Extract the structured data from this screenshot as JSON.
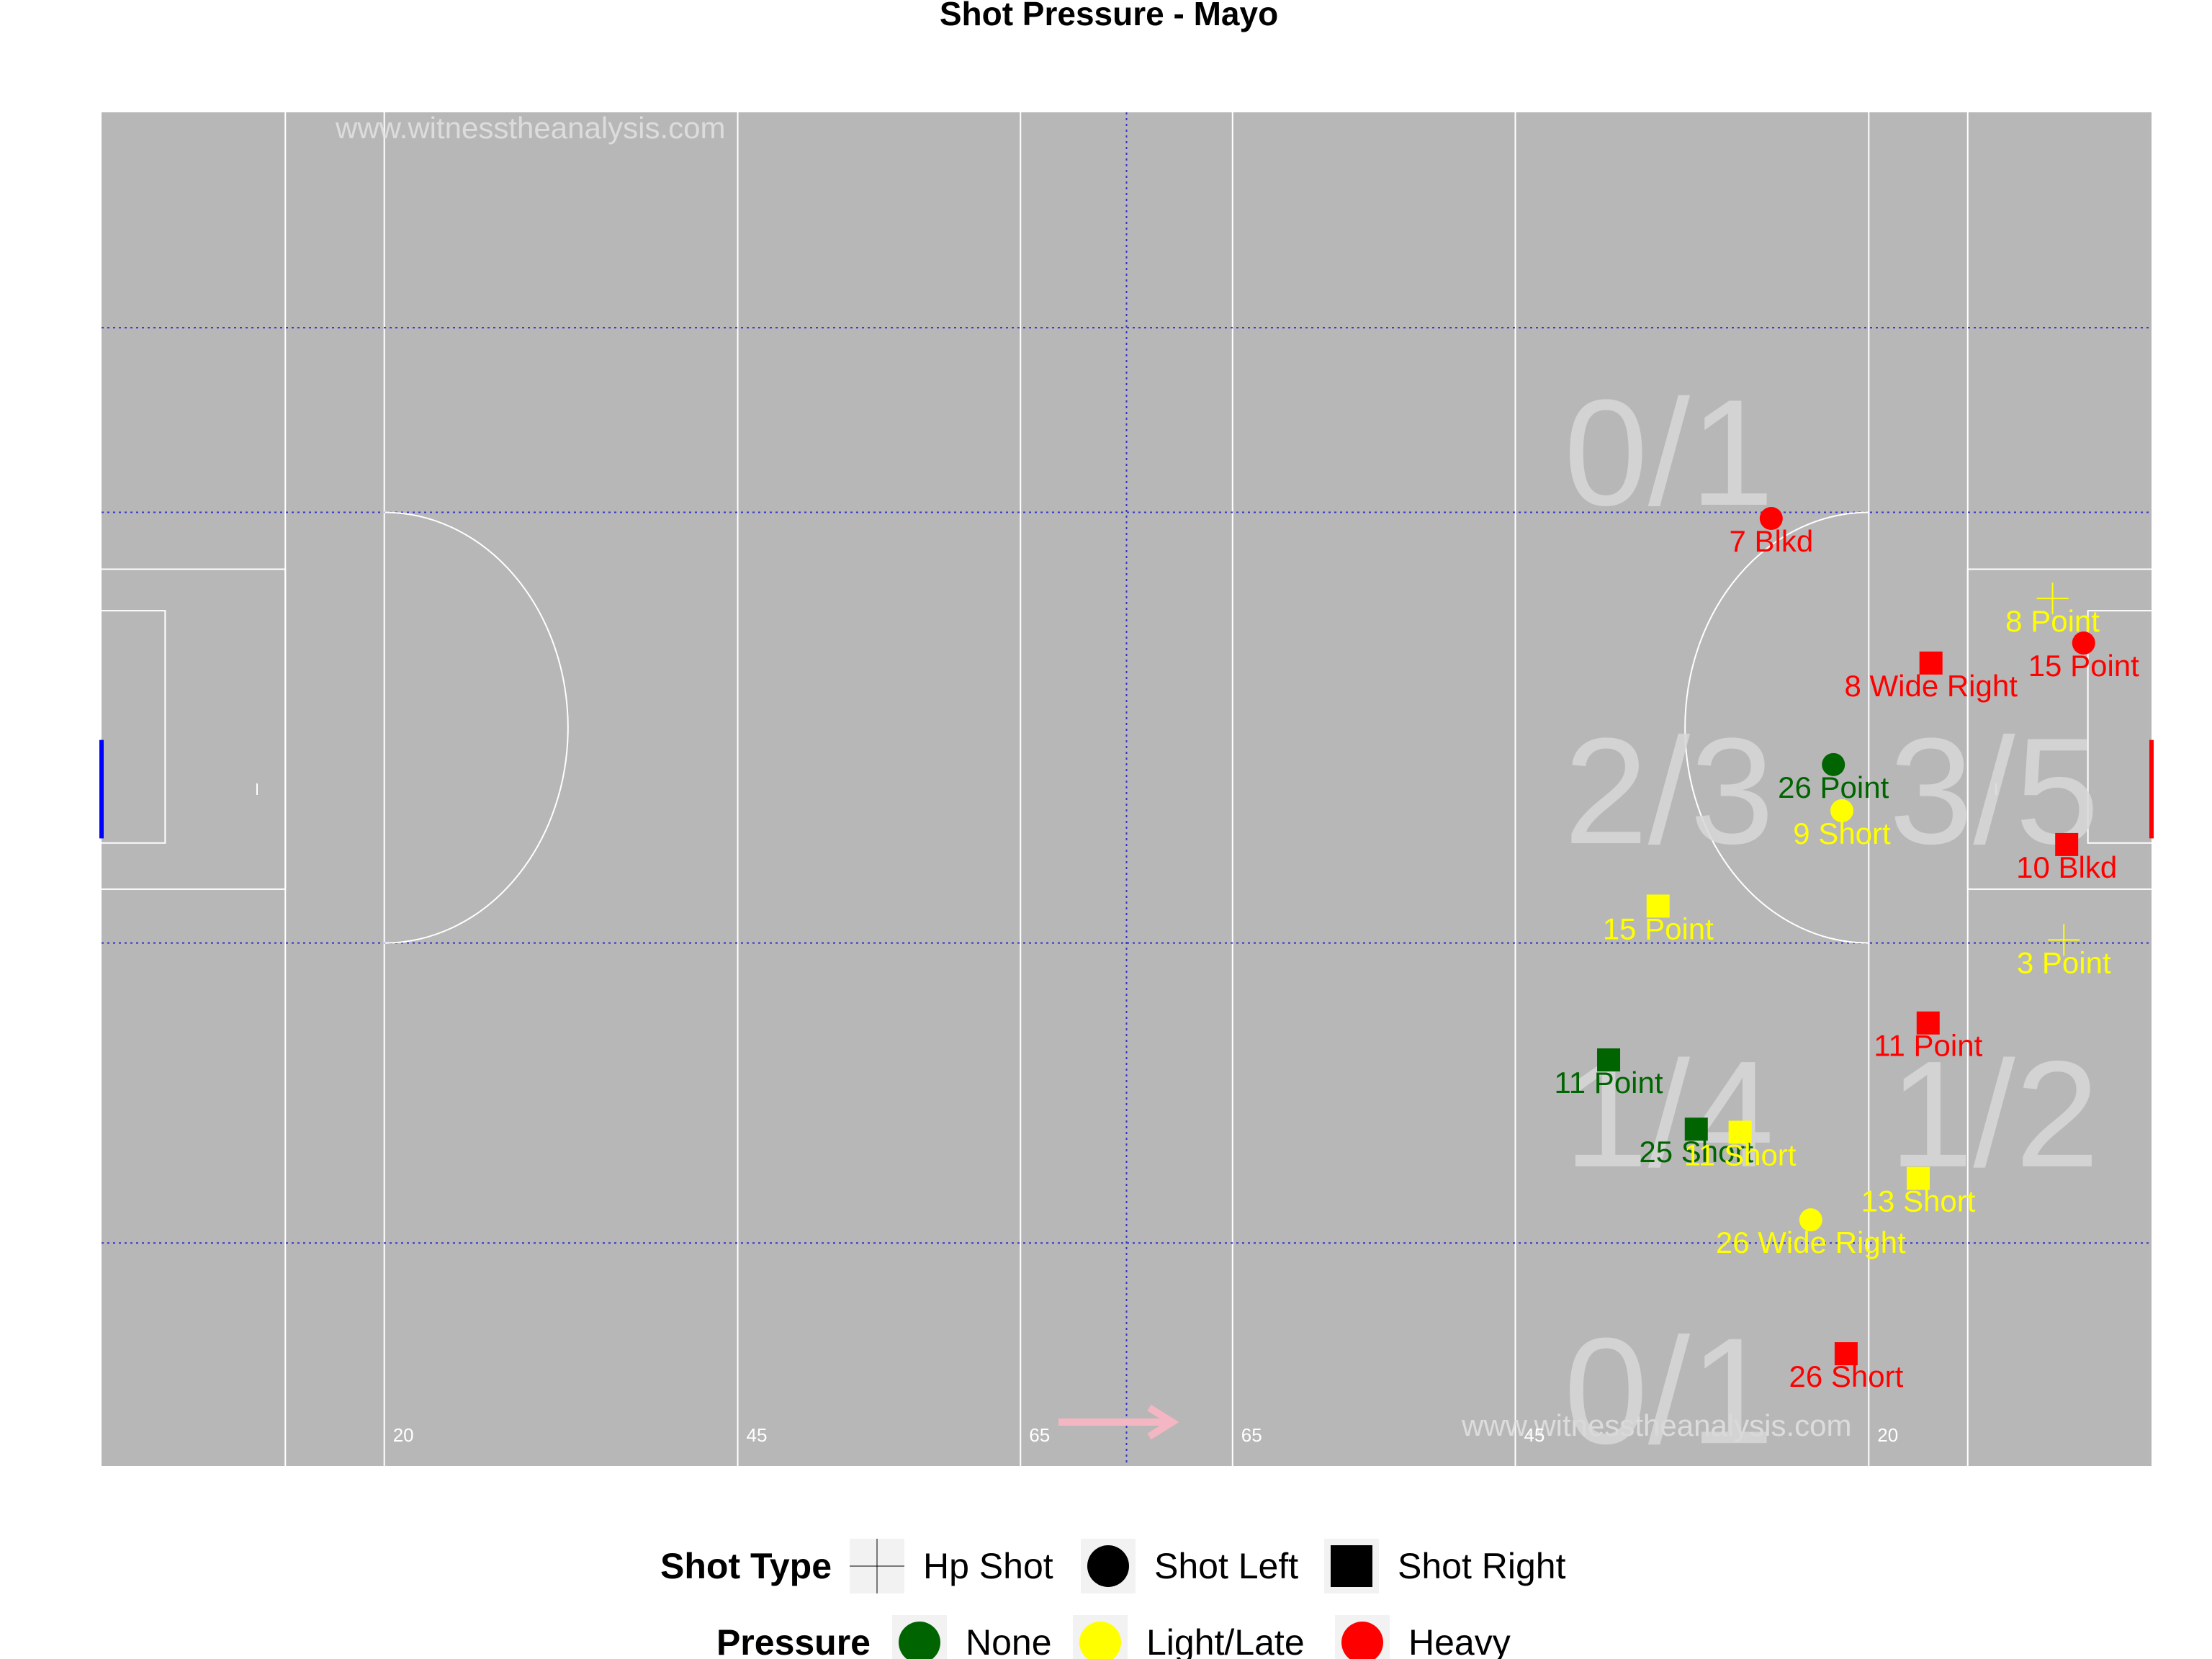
{
  "chart_data": {
    "type": "scatter",
    "title": "Shot Pressure - Mayo",
    "xlim": [
      0,
      145
    ],
    "ylim": [
      0,
      88
    ],
    "pitch_markings": [
      "20",
      "45",
      "65",
      "65",
      "45",
      "20"
    ],
    "watermark": "www.witnesstheanalysis.com",
    "zones": [
      {
        "label": "0/1",
        "x": 111,
        "y": 66
      },
      {
        "label": "2/3",
        "x": 111,
        "y": 44
      },
      {
        "label": "3/5",
        "x": 134,
        "y": 44
      },
      {
        "label": "1/4",
        "x": 111,
        "y": 23
      },
      {
        "label": "1/2",
        "x": 134,
        "y": 23
      },
      {
        "label": "0/1",
        "x": 111,
        "y": 5
      }
    ],
    "shots": [
      {
        "label": "7 Blkd",
        "x": 118.1,
        "y": 61.6,
        "shot_type": "Shot Left",
        "pressure": "Heavy"
      },
      {
        "label": "8 Point",
        "x": 138.0,
        "y": 56.4,
        "shot_type": "Hp Shot",
        "pressure": "Light/Late"
      },
      {
        "label": "15 Point",
        "x": 140.2,
        "y": 53.5,
        "shot_type": "Shot Left",
        "pressure": "Heavy"
      },
      {
        "label": "8 Wide Right",
        "x": 129.4,
        "y": 52.2,
        "shot_type": "Shot Right",
        "pressure": "Heavy"
      },
      {
        "label": "26 Point",
        "x": 122.5,
        "y": 45.6,
        "shot_type": "Shot Left",
        "pressure": "None"
      },
      {
        "label": "9 Short",
        "x": 123.1,
        "y": 42.6,
        "shot_type": "Shot Left",
        "pressure": "Light/Late"
      },
      {
        "label": "10 Blkd",
        "x": 139.0,
        "y": 40.4,
        "shot_type": "Shot Right",
        "pressure": "Heavy"
      },
      {
        "label": "15 Point",
        "x": 110.1,
        "y": 36.4,
        "shot_type": "Shot Right",
        "pressure": "Light/Late"
      },
      {
        "label": "3 Point",
        "x": 138.8,
        "y": 34.2,
        "shot_type": "Hp Shot",
        "pressure": "Light/Late"
      },
      {
        "label": "11 Point",
        "x": 129.2,
        "y": 28.8,
        "shot_type": "Shot Right",
        "pressure": "Heavy"
      },
      {
        "label": "11 Point",
        "x": 106.6,
        "y": 26.4,
        "shot_type": "Shot Right",
        "pressure": "None"
      },
      {
        "label": "25 Short",
        "x": 112.8,
        "y": 21.9,
        "shot_type": "Shot Right",
        "pressure": "None"
      },
      {
        "label": "11 Short",
        "x": 115.9,
        "y": 21.7,
        "shot_type": "Shot Right",
        "pressure": "Light/Late"
      },
      {
        "label": "13 Short",
        "x": 128.5,
        "y": 18.7,
        "shot_type": "Shot Right",
        "pressure": "Light/Late"
      },
      {
        "label": "26 Wide Right",
        "x": 120.9,
        "y": 16.0,
        "shot_type": "Shot Left",
        "pressure": "Light/Late"
      },
      {
        "label": "26 Short",
        "x": 123.4,
        "y": 7.3,
        "shot_type": "Shot Right",
        "pressure": "Heavy"
      }
    ],
    "legend": {
      "placement": "bottom",
      "shot_type": {
        "title": "Shot Type",
        "items": [
          {
            "label": "Hp Shot",
            "shape": "plus"
          },
          {
            "label": "Shot Left",
            "shape": "circle"
          },
          {
            "label": "Shot Right",
            "shape": "square"
          }
        ]
      },
      "pressure": {
        "title": "Pressure",
        "items": [
          {
            "label": "None",
            "color": "#006400"
          },
          {
            "label": "Light/Late",
            "color": "#ffff00"
          },
          {
            "label": "Heavy",
            "color": "#ff0000"
          }
        ]
      }
    },
    "colors": {
      "pitch": "#b7b7b7",
      "line": "#ffffff",
      "zone_line": "#3333cc",
      "None": "#006400",
      "Light/Late": "#ffff00",
      "Heavy": "#ff0000",
      "left_goal": "#0000ff",
      "right_goal": "#ff0000",
      "direction_arrow": "#f4b6c2"
    }
  }
}
